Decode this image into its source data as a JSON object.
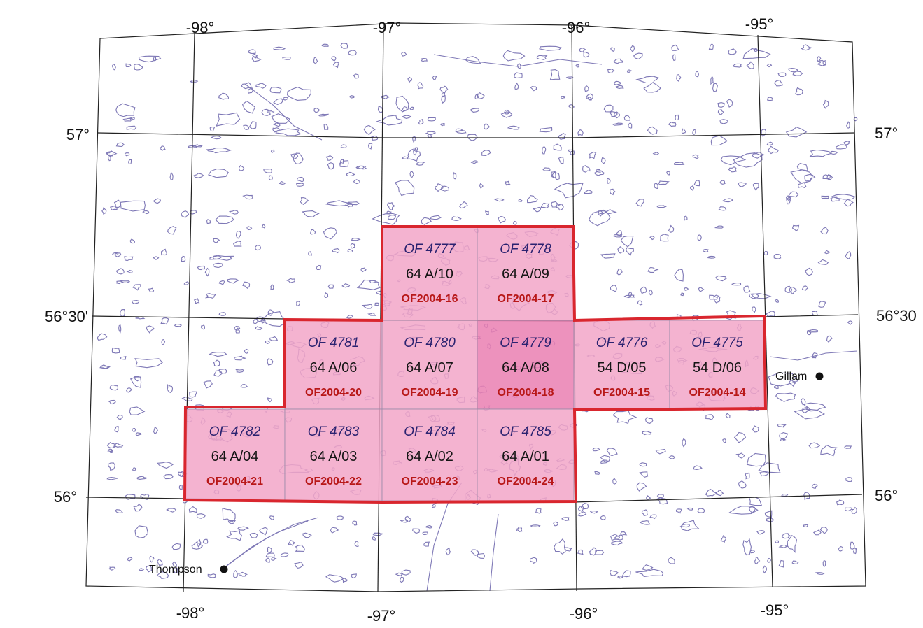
{
  "colors": {
    "background": "#ffffff",
    "graticule": "#222222",
    "lakes": "#7e78b6",
    "tile_fill": "#f2a6c8",
    "tile_fill_highlight": "#ea7fb1",
    "tile_border": "#d9262e",
    "of_number": "#2a2270",
    "nts_sheet": "#151515",
    "of2004": "#b81818"
  },
  "graticule": {
    "lon_top": [
      "-98°",
      "-97°",
      "-96°",
      "-95°"
    ],
    "lon_bottom": [
      "-98°",
      "-97°",
      "-96°",
      "-95°"
    ],
    "lat_left": [
      "57°",
      "56°30'",
      "56°"
    ],
    "lat_right": [
      "57°",
      "56°30",
      "56°"
    ]
  },
  "tiles": [
    {
      "of": "OF 4777",
      "nts": "64 A/10",
      "ofd": "OF2004-16",
      "highlight": false
    },
    {
      "of": "OF 4778",
      "nts": "64 A/09",
      "ofd": "OF2004-17",
      "highlight": false
    },
    {
      "of": "OF 4781",
      "nts": "64 A/06",
      "ofd": "OF2004-20",
      "highlight": false
    },
    {
      "of": "OF 4780",
      "nts": "64 A/07",
      "ofd": "OF2004-19",
      "highlight": false
    },
    {
      "of": "OF 4779",
      "nts": "64 A/08",
      "ofd": "OF2004-18",
      "highlight": true
    },
    {
      "of": "OF 4776",
      "nts": "54 D/05",
      "ofd": "OF2004-15",
      "highlight": false
    },
    {
      "of": "OF 4775",
      "nts": "54 D/06",
      "ofd": "OF2004-14",
      "highlight": false
    },
    {
      "of": "OF 4782",
      "nts": "64 A/04",
      "ofd": "OF2004-21",
      "highlight": false
    },
    {
      "of": "OF 4783",
      "nts": "64 A/03",
      "ofd": "OF2004-22",
      "highlight": false
    },
    {
      "of": "OF 4784",
      "nts": "64 A/02",
      "ofd": "OF2004-23",
      "highlight": false
    },
    {
      "of": "OF 4785",
      "nts": "64 A/01",
      "ofd": "OF2004-24",
      "highlight": false
    }
  ],
  "towns": {
    "gillam": "Gillam",
    "thompson": "Thompson"
  }
}
